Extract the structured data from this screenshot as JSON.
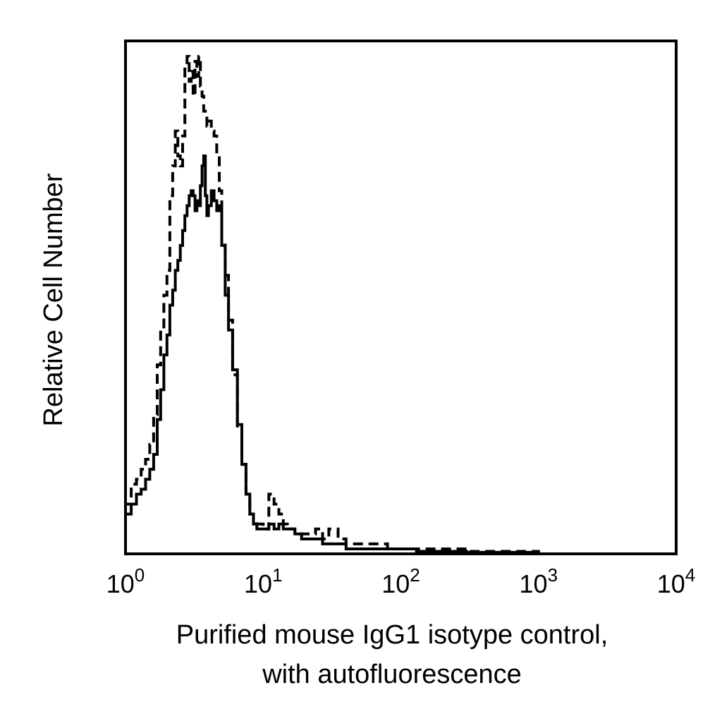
{
  "chart_data": {
    "type": "histogram",
    "title": "",
    "xlabel_lines": [
      "Purified mouse IgG1 isotype control,",
      "with autofluorescence"
    ],
    "ylabel": "Relative Cell Number",
    "x_scale": "log",
    "xlim": [
      1,
      10000
    ],
    "ylim": [
      0,
      100
    ],
    "x_ticks": [
      {
        "base": "10",
        "exp": "0",
        "value": 1
      },
      {
        "base": "10",
        "exp": "1",
        "value": 10
      },
      {
        "base": "10",
        "exp": "2",
        "value": 100
      },
      {
        "base": "10",
        "exp": "3",
        "value": 1000
      },
      {
        "base": "10",
        "exp": "4",
        "value": 10000
      }
    ],
    "y_tick_labels": false,
    "grid": false,
    "legend": false,
    "series": [
      {
        "style": "dashed",
        "color": "#000000",
        "x": [
          1.0,
          1.1,
          1.2,
          1.3,
          1.4,
          1.5,
          1.6,
          1.7,
          1.8,
          1.9,
          2.0,
          2.1,
          2.2,
          2.3,
          2.4,
          2.5,
          2.6,
          2.7,
          2.8,
          2.9,
          3.0,
          3.1,
          3.2,
          3.3,
          3.4,
          3.5,
          3.6,
          3.7,
          3.8,
          3.9,
          4.0,
          4.2,
          4.4,
          4.6,
          4.8,
          5.0,
          5.3,
          5.6,
          6.0,
          6.5,
          7.0,
          7.5,
          8.0,
          8.5,
          9.0,
          10,
          11,
          12,
          13,
          14,
          15,
          17,
          19,
          21,
          24,
          27,
          30,
          35,
          40,
          50,
          60,
          80,
          100,
          130,
          160,
          200,
          250,
          300,
          400,
          500,
          1000
        ],
        "values": [
          10,
          14,
          15,
          17,
          19,
          22,
          28,
          38,
          45,
          52,
          57,
          72,
          78,
          85,
          80,
          78,
          84,
          98,
          100,
          95,
          97,
          92,
          99,
          96,
          100,
          94,
          92,
          89,
          88,
          86,
          87,
          85,
          84,
          80,
          73,
          63,
          56,
          47,
          36,
          25,
          18,
          12,
          8,
          7,
          6,
          5,
          12,
          10,
          8,
          6,
          5,
          4,
          4,
          4,
          5,
          3,
          5,
          3,
          2,
          2,
          2,
          1,
          1,
          1,
          1,
          1,
          1,
          0.5,
          0.5,
          0.5,
          0.3
        ]
      },
      {
        "style": "solid",
        "color": "#000000",
        "x": [
          1.0,
          1.1,
          1.2,
          1.3,
          1.4,
          1.5,
          1.6,
          1.7,
          1.8,
          1.9,
          2.0,
          2.1,
          2.2,
          2.3,
          2.4,
          2.5,
          2.6,
          2.7,
          2.8,
          2.9,
          3.0,
          3.1,
          3.2,
          3.3,
          3.4,
          3.5,
          3.6,
          3.7,
          3.8,
          3.9,
          4.0,
          4.2,
          4.4,
          4.6,
          4.8,
          5.0,
          5.3,
          5.6,
          6.0,
          6.5,
          7.0,
          7.5,
          8.0,
          8.5,
          9.0,
          10,
          11,
          12,
          13,
          14,
          15,
          17,
          19,
          21,
          24,
          27,
          30,
          35,
          40,
          50,
          60,
          80,
          100,
          130,
          160,
          200,
          250,
          300,
          400,
          500,
          1000
        ],
        "values": [
          8,
          10,
          12,
          13,
          15,
          17,
          20,
          27,
          33,
          40,
          44,
          50,
          53,
          57,
          59,
          62,
          65,
          68,
          70,
          72,
          73,
          72,
          69,
          71,
          70,
          74,
          78,
          80,
          72,
          68,
          70,
          73,
          71,
          69,
          70,
          62,
          52,
          45,
          37,
          26,
          18,
          12,
          8,
          6,
          5,
          5,
          6,
          5,
          6,
          5,
          5,
          4,
          3,
          3,
          3,
          2,
          2,
          2,
          1,
          1,
          1,
          1,
          1,
          0.5,
          0.5,
          0.5,
          0.5,
          0.3,
          0.3,
          0.3,
          0.2
        ]
      }
    ]
  }
}
